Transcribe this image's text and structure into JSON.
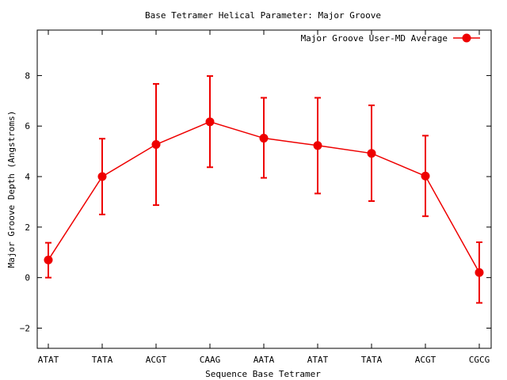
{
  "chart_data": {
    "type": "line",
    "title": "Base Tetramer Helical Parameter: Major Groove",
    "xlabel": "Sequence Base Tetramer",
    "ylabel": "Major Groove Depth (Angstroms)",
    "categories": [
      "ATAT",
      "TATA",
      "ACGT",
      "CAAG",
      "AATA",
      "ATAT",
      "TATA",
      "ACGT",
      "CGCG"
    ],
    "ylim": [
      -2.8,
      9.8
    ],
    "yticks": [
      -2,
      0,
      2,
      4,
      6,
      8
    ],
    "grid": false,
    "legend": "top-right",
    "series": [
      {
        "name": "Major Groove User-MD Average",
        "color": "#ee0000",
        "values": [
          0.7,
          4.0,
          5.27,
          6.17,
          5.52,
          5.23,
          4.92,
          4.02,
          0.2
        ],
        "err_low": [
          0.0,
          2.5,
          2.87,
          4.37,
          3.95,
          3.33,
          3.03,
          2.43,
          -1.0
        ],
        "err_high": [
          1.38,
          5.5,
          7.67,
          7.98,
          7.12,
          7.12,
          6.82,
          5.62,
          1.4
        ]
      }
    ]
  }
}
